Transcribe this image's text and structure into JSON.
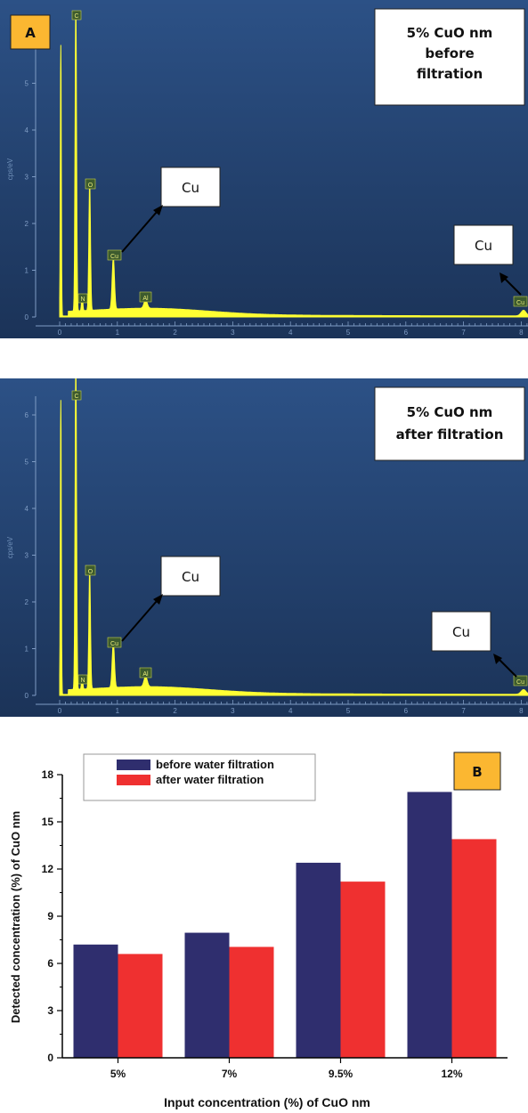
{
  "spectra": [
    {
      "panel_label": "A",
      "title_lines": [
        "5% CuO nm",
        "before",
        "filtration"
      ],
      "y_axis_label": "cps/eV",
      "y_ticks": [
        "0",
        "1",
        "2",
        "3",
        "4",
        "5"
      ],
      "x_ticks": [
        "0",
        "1",
        "2",
        "3",
        "4",
        "5",
        "6",
        "7",
        "8"
      ],
      "ymax": 6.5,
      "peak_labels": [
        "C",
        "N",
        "O",
        "Cu",
        "Al",
        "Cu"
      ],
      "callout_left": "Cu",
      "callout_right": "Cu",
      "peaks": [
        {
          "keV": 0.02,
          "height": 5.8,
          "width": 0.012
        },
        {
          "keV": 0.28,
          "height": 6.6,
          "width": 0.018
        },
        {
          "keV": 0.39,
          "height": 0.35,
          "width": 0.015
        },
        {
          "keV": 0.52,
          "height": 2.7,
          "width": 0.02
        },
        {
          "keV": 0.93,
          "height": 1.1,
          "width": 0.028
        },
        {
          "keV": 1.49,
          "height": 0.18,
          "width": 0.04
        },
        {
          "keV": 8.04,
          "height": 0.12,
          "width": 0.06
        }
      ]
    },
    {
      "panel_label": "",
      "title_lines": [
        "5% CuO nm",
        "after filtration"
      ],
      "y_axis_label": "cps/eV",
      "y_ticks": [
        "0",
        "1",
        "2",
        "3",
        "4",
        "5",
        "6"
      ],
      "x_ticks": [
        "0",
        "1",
        "2",
        "3",
        "4",
        "5",
        "6",
        "7",
        "8"
      ],
      "ymax": 6.9,
      "peak_labels": [
        "C",
        "N",
        "O",
        "Cu",
        "Al",
        "Cu"
      ],
      "callout_left": "Cu",
      "callout_right": "Cu",
      "peaks": [
        {
          "keV": 0.02,
          "height": 6.3,
          "width": 0.012
        },
        {
          "keV": 0.28,
          "height": 7.0,
          "width": 0.018
        },
        {
          "keV": 0.39,
          "height": 0.3,
          "width": 0.015
        },
        {
          "keV": 0.52,
          "height": 2.5,
          "width": 0.02
        },
        {
          "keV": 0.93,
          "height": 0.95,
          "width": 0.028
        },
        {
          "keV": 1.49,
          "height": 0.22,
          "width": 0.04
        },
        {
          "keV": 8.04,
          "height": 0.1,
          "width": 0.06
        }
      ]
    }
  ],
  "chart_data": {
    "type": "bar",
    "panel_label": "B",
    "categories": [
      "5%",
      "7%",
      "9.5%",
      "12%"
    ],
    "series": [
      {
        "name": "before water filtration",
        "color": "#2f2e6e",
        "values": [
          7.2,
          7.95,
          12.4,
          16.9
        ]
      },
      {
        "name": "after water filtration",
        "color": "#ef3030",
        "values": [
          6.6,
          7.05,
          11.2,
          13.9
        ]
      }
    ],
    "xlabel": "Input concentration (%) of CuO nm",
    "ylabel": "Detected concentration (%) of CuO nm",
    "ylim": [
      0,
      18
    ],
    "yticks": [
      "0",
      "3",
      "6",
      "9",
      "12",
      "15",
      "18"
    ],
    "grid": false,
    "legend_position": "top-left"
  },
  "colors": {
    "spectrum_bg_top": "#2a4f82",
    "spectrum_bg_bottom": "#1a3359",
    "spectrum_line": "#ffff33",
    "label_box": "#fbb731"
  }
}
